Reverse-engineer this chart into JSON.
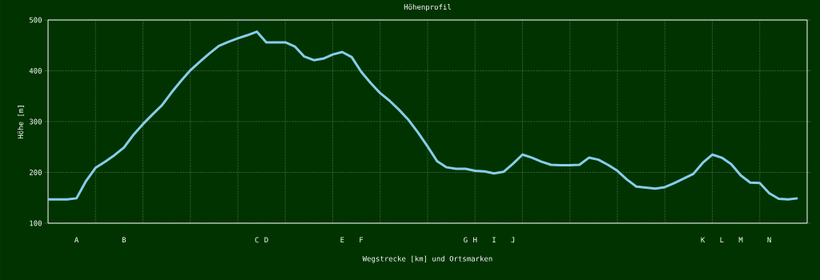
{
  "chart_data": {
    "type": "line",
    "title": "Höhenprofil",
    "xlabel": "Wegstrecke [km] und Ortsmarken",
    "ylabel": "Höhe [m]",
    "categories": [
      null,
      null,
      null,
      "A",
      null,
      null,
      null,
      null,
      "B",
      null,
      null,
      null,
      null,
      null,
      null,
      null,
      null,
      null,
      null,
      null,
      null,
      null,
      "C",
      "D",
      null,
      null,
      null,
      null,
      null,
      null,
      null,
      "E",
      null,
      "F",
      null,
      null,
      null,
      null,
      null,
      null,
      null,
      null,
      null,
      null,
      "G",
      "H",
      null,
      "I",
      null,
      "J",
      null,
      null,
      null,
      null,
      null,
      null,
      null,
      null,
      null,
      null,
      null,
      null,
      null,
      null,
      null,
      null,
      null,
      null,
      null,
      "K",
      null,
      "L",
      null,
      "M",
      null,
      null,
      "N",
      null,
      null,
      null
    ],
    "series": [
      {
        "color": "#87ceeb",
        "values": [
          147,
          147,
          147,
          149,
          183,
          209,
          221,
          234,
          249,
          274,
          295,
          314,
          332,
          357,
          380,
          401,
          418,
          434,
          449,
          457,
          464,
          470,
          477,
          456,
          456,
          456,
          448,
          428,
          421,
          424,
          432,
          437,
          427,
          398,
          376,
          356,
          341,
          323,
          303,
          278,
          251,
          222,
          210,
          207,
          207,
          203,
          202,
          198,
          201,
          217,
          235,
          229,
          221,
          215,
          214,
          214,
          215,
          229,
          225,
          215,
          203,
          186,
          172,
          170,
          168,
          171,
          179,
          188,
          197,
          219,
          235,
          229,
          216,
          194,
          180,
          179,
          159,
          148,
          147,
          149
        ]
      }
    ],
    "ylim": [
      100,
      500
    ],
    "yticks": [
      100,
      200,
      300,
      400,
      500
    ],
    "grid": true
  }
}
